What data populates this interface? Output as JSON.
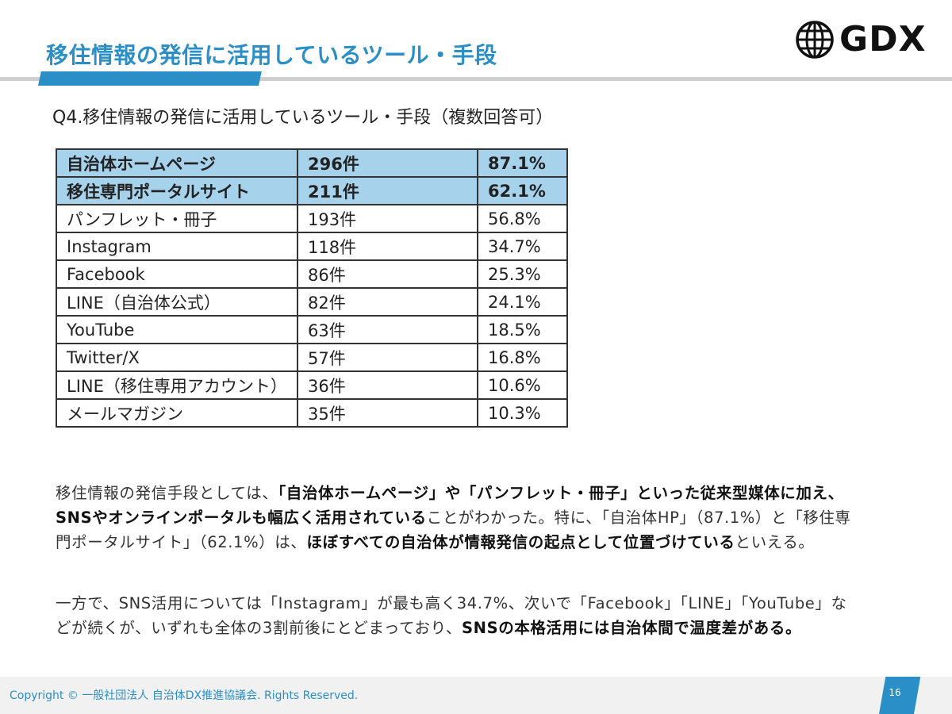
{
  "header": {
    "title": "移住情報の発信に活用しているツール・手段",
    "logo_text": "GDX",
    "logo_icon": "globe-icon"
  },
  "question": "Q4.移住情報の発信に活用しているツール・手段（複数回答可）",
  "table": {
    "rows": [
      {
        "name": "自治体ホームページ",
        "count": "296件",
        "pct": "87.1%",
        "highlight": true
      },
      {
        "name": "移住専門ポータルサイト",
        "count": "211件",
        "pct": "62.1%",
        "highlight": true
      },
      {
        "name": "パンフレット・冊子",
        "count": "193件",
        "pct": "56.8%",
        "highlight": false
      },
      {
        "name": "Instagram",
        "count": "118件",
        "pct": "34.7%",
        "highlight": false
      },
      {
        "name": "Facebook",
        "count": "86件",
        "pct": "25.3%",
        "highlight": false
      },
      {
        "name": "LINE（自治体公式）",
        "count": "82件",
        "pct": "24.1%",
        "highlight": false
      },
      {
        "name": "YouTube",
        "count": "63件",
        "pct": "18.5%",
        "highlight": false
      },
      {
        "name": "Twitter/X",
        "count": "57件",
        "pct": "16.8%",
        "highlight": false
      },
      {
        "name": "LINE（移住専用アカウント）",
        "count": "36件",
        "pct": "10.6%",
        "highlight": false
      },
      {
        "name": "メールマガジン",
        "count": "35件",
        "pct": "10.3%",
        "highlight": false
      }
    ]
  },
  "paragraph1": [
    {
      "text": "移住情報の発信手段としては、",
      "bold": false
    },
    {
      "text": "「自治体ホームページ」や「パンフレット・冊子」といった従来型媒体に加え、SNSやオンラインポータルも幅広く活用されている",
      "bold": true
    },
    {
      "text": "ことがわかった。特に、「自治体HP」（87.1%）と「移住専門ポータルサイト」（62.1%）は、",
      "bold": false
    },
    {
      "text": "ほぼすべての自治体が情報発信の起点として位置づけている",
      "bold": true
    },
    {
      "text": "といえる。",
      "bold": false
    }
  ],
  "paragraph2": [
    {
      "text": "一方で、SNS活用については「Instagram」が最も高く34.7%、次いで「Facebook」「LINE」「YouTube」などが続くが、いずれも全体の3割前後にとどまっており、",
      "bold": false
    },
    {
      "text": "SNSの本格活用には自治体間で温度差がある。",
      "bold": true
    }
  ],
  "footer": {
    "copyright": "Copyright © 一般社団法人 自治体DX推進協議会. Rights Reserved.",
    "page_number": "16"
  },
  "colors": {
    "accent": "#2a8fc6",
    "highlight_row": "#a6d2ec"
  }
}
